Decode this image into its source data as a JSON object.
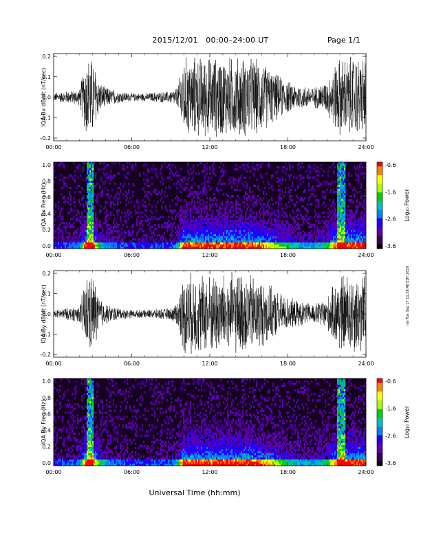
{
  "header": {
    "date": "2015/12/01",
    "time_range": "00:00–24:00 UT",
    "page": "Page 1/1"
  },
  "footer": {
    "xlabel": "Universal Time (hh:mm)",
    "stamp": "nel Tue Sep 17 11:58:48 EDT 2019"
  },
  "colors": {
    "trace": "#000000",
    "colormap": [
      "#000000",
      "#3a0060",
      "#5a00b0",
      "#2000ff",
      "#0080ff",
      "#00c0c0",
      "#00d000",
      "#a0ff00",
      "#ffff00",
      "#ff8000",
      "#ff0000"
    ]
  },
  "chart_data": [
    {
      "type": "line",
      "ylabel": "IQA Bx dB/dt (nT/sec)",
      "ylim": [
        -0.2,
        0.2
      ],
      "yticks": [
        "0.2",
        "0.1",
        "0.0",
        "-0.1",
        "-0.2"
      ],
      "xticks": [
        "00:00",
        "06:00",
        "12:00",
        "18:00",
        "24:00"
      ],
      "xlim_hours": [
        0,
        24
      ],
      "envelope": {
        "hours": [
          0,
          1,
          2,
          2.5,
          2.8,
          3.0,
          3.5,
          4,
          5,
          6,
          7,
          8,
          9,
          9.5,
          10,
          11,
          12,
          13,
          14,
          15,
          16,
          17,
          18,
          19,
          20,
          21,
          21.5,
          22,
          22.5,
          23,
          23.5,
          24
        ],
        "amplitude": [
          0.02,
          0.03,
          0.04,
          0.2,
          0.2,
          0.2,
          0.08,
          0.05,
          0.03,
          0.02,
          0.02,
          0.025,
          0.03,
          0.05,
          0.2,
          0.2,
          0.2,
          0.2,
          0.2,
          0.2,
          0.18,
          0.12,
          0.08,
          0.06,
          0.05,
          0.08,
          0.15,
          0.2,
          0.2,
          0.2,
          0.2,
          0.2
        ]
      }
    },
    {
      "type": "heatmap",
      "ylabel": "IQA Bx Freq (Hz)",
      "ylim": [
        0.0,
        1.0
      ],
      "yticks": [
        "1.0",
        "0.8",
        "0.6",
        "0.4",
        "0.2",
        "0.0"
      ],
      "xticks": [
        "00:00",
        "06:00",
        "12:00",
        "18:00",
        "24:00"
      ],
      "colorbar": {
        "label": "Log₁₀ Power",
        "ticks": [
          "-0.6",
          "-1.6",
          "-2.6",
          "-3.6"
        ],
        "range": [
          -3.6,
          -0.6
        ]
      }
    },
    {
      "type": "line",
      "ylabel": "IQA By dB/dt (nT/sec)",
      "ylim": [
        -0.2,
        0.2
      ],
      "yticks": [
        "0.2",
        "0.1",
        "0.0",
        "-0.1",
        "-0.2"
      ],
      "xticks": [
        "00:00",
        "06:00",
        "12:00",
        "18:00",
        "24:00"
      ],
      "xlim_hours": [
        0,
        24
      ],
      "envelope": {
        "hours": [
          0,
          1,
          2,
          2.5,
          2.8,
          3.0,
          3.5,
          4,
          5,
          6,
          7,
          8,
          9,
          9.5,
          10,
          11,
          12,
          13,
          14,
          15,
          16,
          17,
          18,
          19,
          20,
          21,
          21.5,
          22,
          22.5,
          23,
          23.5,
          24
        ],
        "amplitude": [
          0.02,
          0.03,
          0.04,
          0.2,
          0.2,
          0.2,
          0.09,
          0.05,
          0.03,
          0.02,
          0.02,
          0.025,
          0.03,
          0.06,
          0.2,
          0.2,
          0.2,
          0.2,
          0.2,
          0.2,
          0.17,
          0.12,
          0.08,
          0.06,
          0.05,
          0.08,
          0.14,
          0.2,
          0.2,
          0.2,
          0.2,
          0.2
        ]
      }
    },
    {
      "type": "heatmap",
      "ylabel": "IQA By Freq (Hz)",
      "ylim": [
        0.0,
        1.0
      ],
      "yticks": [
        "1.0",
        "0.8",
        "0.6",
        "0.4",
        "0.2",
        "0.0"
      ],
      "xticks": [
        "00:00",
        "06:00",
        "12:00",
        "18:00",
        "24:00"
      ],
      "colorbar": {
        "label": "Log₁₀ Power",
        "ticks": [
          "-0.6",
          "-1.6",
          "-2.6",
          "-3.6"
        ],
        "range": [
          -3.6,
          -0.6
        ]
      }
    }
  ]
}
